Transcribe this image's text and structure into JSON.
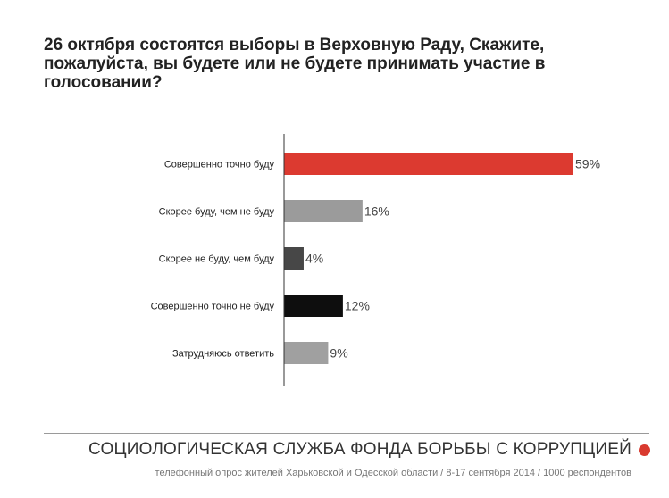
{
  "header": {
    "title": "26 октября состоятся выборы в Верховную Раду, Скажите, пожалуйста, вы будете или не будете принимать участие в голосовании?"
  },
  "footer": {
    "organization": "СОЦИОЛОГИЧЕСКАЯ СЛУЖБА ФОНДА БОРЬБЫ С КОРРУПЦИЕЙ",
    "survey_note": "телефонный опрос жителей Харьковской и Одесской области / 8-17 сентября 2014 / 1000 респондентов",
    "dot_color": "#d93a2f"
  },
  "chart_data": {
    "type": "bar",
    "orientation": "horizontal",
    "title": "26 октября состоятся выборы в Верховную Раду, Скажите, пожалуйста, вы будете или не будете принимать участие в голосовании?",
    "categories": [
      "Совершенно точно буду",
      "Скорее буду, чем не буду",
      "Скорее не буду, чем буду",
      "Совершенно точно не буду",
      "Затрудняюсь ответить"
    ],
    "values": [
      59,
      16,
      4,
      12,
      9
    ],
    "value_labels": [
      "59%",
      "16%",
      "4%",
      "12%",
      "9%"
    ],
    "unit": "%",
    "colors": [
      "#dc3a30",
      "#9b9b9b",
      "#474747",
      "#0e0e0e",
      "#a0a0a0"
    ],
    "xlim": [
      0,
      59
    ],
    "grid": false,
    "legend": "none"
  }
}
